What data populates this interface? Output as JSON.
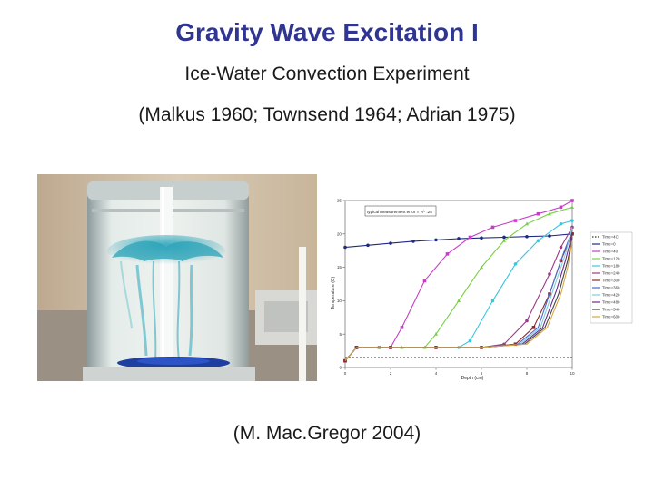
{
  "slide": {
    "title": "Gravity Wave Excitation I",
    "subtitle": "Ice-Water Convection Experiment",
    "citation": "(Malkus 1960; Townsend 1964; Adrian 1975)",
    "credit": "(M. Mac.Gregor 2004)"
  },
  "photo": {
    "icon": "ice-water-tank-photo",
    "dye_color": "#2aa3b8",
    "floor_color": "#1f3fa0"
  },
  "chart_data": {
    "type": "line",
    "title": "",
    "xlabel": "Depth (cm)",
    "ylabel": "Temperature (C)",
    "xlim": [
      0,
      10
    ],
    "ylim": [
      0,
      25
    ],
    "x_ticks": [
      0,
      2,
      4,
      6,
      8,
      10
    ],
    "y_ticks": [
      0,
      5,
      10,
      15,
      20,
      25
    ],
    "inset_label": "typical measurement error = +/- .25",
    "legend_position": "right",
    "grid": false,
    "series": [
      {
        "name": "Time=4C",
        "color": "#333333",
        "dashed": true,
        "marker": "none",
        "points": [
          [
            0,
            1.5
          ],
          [
            2,
            1.5
          ],
          [
            4,
            1.5
          ],
          [
            6,
            1.5
          ],
          [
            8,
            1.5
          ],
          [
            10,
            1.5
          ]
        ]
      },
      {
        "name": "Time=0",
        "color": "#1f2a80",
        "dashed": false,
        "marker": "circle",
        "points": [
          [
            0,
            18
          ],
          [
            1,
            18.3
          ],
          [
            2,
            18.6
          ],
          [
            3,
            18.9
          ],
          [
            4,
            19.1
          ],
          [
            5,
            19.3
          ],
          [
            6,
            19.4
          ],
          [
            7,
            19.5
          ],
          [
            8,
            19.6
          ],
          [
            9,
            19.7
          ],
          [
            10,
            20.0
          ]
        ]
      },
      {
        "name": "Time=40",
        "color": "#c63ec6",
        "dashed": false,
        "marker": "square",
        "points": [
          [
            0,
            1
          ],
          [
            0.5,
            3
          ],
          [
            1.5,
            3
          ],
          [
            2,
            3
          ],
          [
            2.5,
            6
          ],
          [
            3.5,
            13
          ],
          [
            4.5,
            17
          ],
          [
            5.5,
            19.5
          ],
          [
            6.5,
            21
          ],
          [
            7.5,
            22
          ],
          [
            8.5,
            23
          ],
          [
            9.5,
            24
          ],
          [
            10,
            25
          ]
        ]
      },
      {
        "name": "Time=120",
        "color": "#77d044",
        "dashed": false,
        "marker": "triangle",
        "points": [
          [
            0,
            1
          ],
          [
            0.5,
            3
          ],
          [
            1.5,
            3
          ],
          [
            2.5,
            3
          ],
          [
            3.5,
            3
          ],
          [
            4,
            5
          ],
          [
            5,
            10
          ],
          [
            6,
            15
          ],
          [
            7,
            19
          ],
          [
            8,
            21.5
          ],
          [
            9,
            23
          ],
          [
            10,
            24
          ]
        ]
      },
      {
        "name": "Time=180",
        "color": "#3ac6e0",
        "dashed": false,
        "marker": "circle",
        "points": [
          [
            0,
            1
          ],
          [
            0.5,
            3
          ],
          [
            2,
            3
          ],
          [
            4,
            3
          ],
          [
            5,
            3
          ],
          [
            5.5,
            4
          ],
          [
            6.5,
            10
          ],
          [
            7.5,
            15.5
          ],
          [
            8.5,
            19
          ],
          [
            9.5,
            21.5
          ],
          [
            10,
            22
          ]
        ]
      },
      {
        "name": "Time=240",
        "color": "#9b3b86",
        "dashed": false,
        "marker": "circle",
        "points": [
          [
            0,
            1
          ],
          [
            0.5,
            3
          ],
          [
            2,
            3
          ],
          [
            4,
            3
          ],
          [
            6,
            3
          ],
          [
            7,
            3.5
          ],
          [
            8,
            7
          ],
          [
            9,
            14
          ],
          [
            9.5,
            18
          ],
          [
            10,
            21
          ]
        ]
      },
      {
        "name": "Time=300",
        "color": "#8a2a2a",
        "dashed": false,
        "marker": "square",
        "points": [
          [
            0,
            1
          ],
          [
            0.5,
            3
          ],
          [
            2,
            3
          ],
          [
            4,
            3
          ],
          [
            6,
            3
          ],
          [
            7.5,
            3.5
          ],
          [
            8.3,
            6
          ],
          [
            9,
            11
          ],
          [
            9.5,
            16
          ],
          [
            10,
            20
          ]
        ]
      },
      {
        "name": "Time=360",
        "color": "#4a6bd4",
        "dashed": false,
        "marker": "none",
        "points": [
          [
            0,
            1
          ],
          [
            0.5,
            3
          ],
          [
            2,
            3
          ],
          [
            4,
            3
          ],
          [
            6,
            3
          ],
          [
            7.6,
            3.5
          ],
          [
            8.5,
            6
          ],
          [
            9.1,
            12
          ],
          [
            9.6,
            17
          ],
          [
            10,
            20.5
          ]
        ]
      },
      {
        "name": "Time=420",
        "color": "#7ad0d8",
        "dashed": false,
        "marker": "none",
        "points": [
          [
            0,
            1
          ],
          [
            0.5,
            3
          ],
          [
            2,
            3
          ],
          [
            4,
            3
          ],
          [
            6,
            3
          ],
          [
            7.7,
            3.5
          ],
          [
            8.6,
            6
          ],
          [
            9.2,
            12
          ],
          [
            9.7,
            17
          ],
          [
            10,
            21
          ]
        ]
      },
      {
        "name": "Time=480",
        "color": "#6b2a8f",
        "dashed": false,
        "marker": "none",
        "points": [
          [
            0,
            1
          ],
          [
            0.5,
            3
          ],
          [
            2,
            3
          ],
          [
            4,
            3
          ],
          [
            6,
            3
          ],
          [
            7.8,
            3.5
          ],
          [
            8.7,
            6
          ],
          [
            9.3,
            11.5
          ],
          [
            9.7,
            16
          ],
          [
            10,
            20
          ]
        ]
      },
      {
        "name": "Time=540",
        "color": "#444444",
        "dashed": false,
        "marker": "none",
        "points": [
          [
            0,
            1
          ],
          [
            0.5,
            3
          ],
          [
            2,
            3
          ],
          [
            4,
            3
          ],
          [
            6,
            3
          ],
          [
            7.9,
            3.5
          ],
          [
            8.8,
            6
          ],
          [
            9.4,
            11
          ],
          [
            9.8,
            16
          ],
          [
            10,
            19.5
          ]
        ]
      },
      {
        "name": "Time=600",
        "color": "#d9a640",
        "dashed": false,
        "marker": "none",
        "points": [
          [
            0,
            1
          ],
          [
            0.5,
            3
          ],
          [
            2,
            3
          ],
          [
            4,
            3
          ],
          [
            6,
            3
          ],
          [
            8,
            3.5
          ],
          [
            8.9,
            6
          ],
          [
            9.5,
            11
          ],
          [
            9.8,
            15
          ],
          [
            10,
            19
          ]
        ]
      }
    ]
  }
}
